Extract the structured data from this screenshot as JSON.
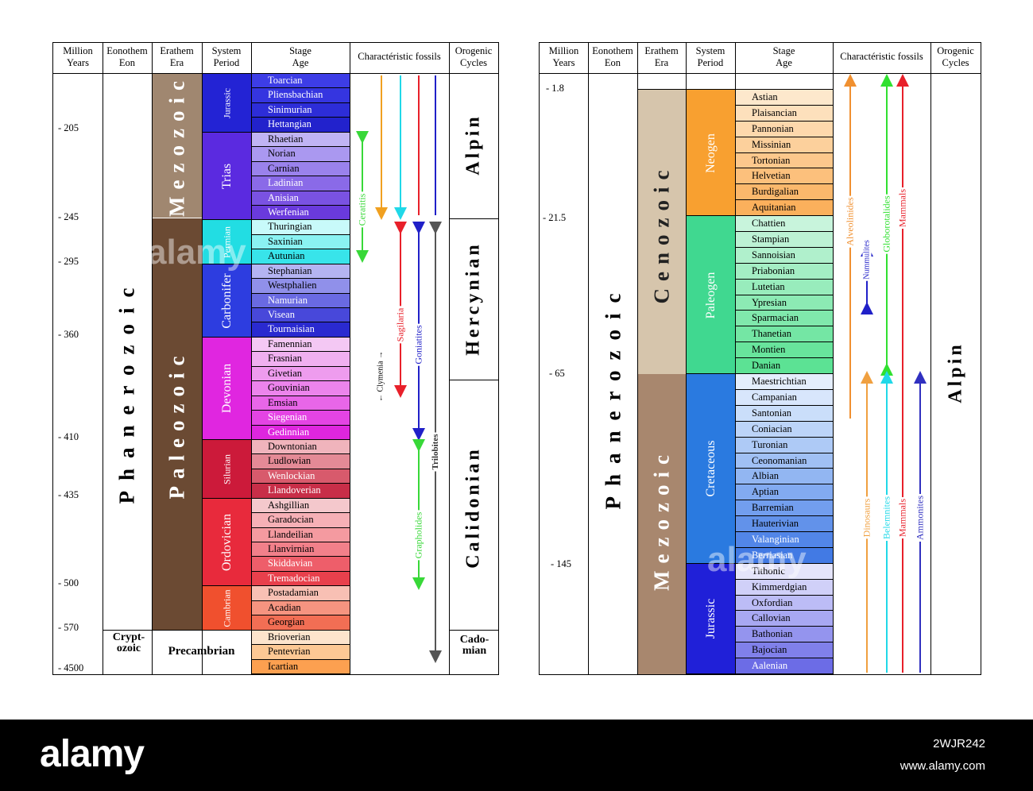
{
  "headers": {
    "years": [
      "Million",
      "Years"
    ],
    "eon": [
      "Eonothem",
      "Eon"
    ],
    "era": [
      "Erathem",
      "Era"
    ],
    "period": [
      "System",
      "Period"
    ],
    "stage": [
      "Stage",
      "Age"
    ],
    "fossils": "Charactéristic fossils",
    "orogenic": [
      "Orogenic",
      "Cycles"
    ]
  },
  "left": {
    "ticks": [
      "- 205",
      "- 245",
      "- 295",
      "- 360",
      "- 410",
      "- 435",
      "- 500",
      "- 570",
      "- 4500"
    ],
    "eon": "Phanerozoic",
    "cryptozoic": [
      "Crypt-",
      "ozoic"
    ],
    "precambrian": "Precambrian",
    "eras": [
      {
        "name": "Mezozoic",
        "color": "#a08770"
      },
      {
        "name": "Paleozoic",
        "color": "#6b4a33"
      }
    ],
    "periods": [
      {
        "name": "Jurassic",
        "color": "#2323d4"
      },
      {
        "name": "Trias",
        "color": "#5b2ae0"
      },
      {
        "name": "Permian",
        "color": "#22dde3"
      },
      {
        "name": "Carbonifer",
        "color": "#2d3de0"
      },
      {
        "name": "Devonian",
        "color": "#e026e0"
      },
      {
        "name": "Silurian",
        "color": "#cc1a3a"
      },
      {
        "name": "Ordovician",
        "color": "#e82a3c"
      },
      {
        "name": "Cambrian",
        "color": "#f0502e"
      }
    ],
    "stages": [
      {
        "name": "Toarcian",
        "color": "#3d3de6"
      },
      {
        "name": "Pliensbachian",
        "color": "#3535e0"
      },
      {
        "name": "Sinimurian",
        "color": "#2d2dd8"
      },
      {
        "name": "Hettangian",
        "color": "#2222cc"
      },
      {
        "name": "Rhaetian",
        "color": "#c0b4f4"
      },
      {
        "name": "Norian",
        "color": "#aa98f0"
      },
      {
        "name": "Carnian",
        "color": "#9a82ec"
      },
      {
        "name": "Ladinian",
        "color": "#8a6ae8"
      },
      {
        "name": "Anisian",
        "color": "#7a52e2"
      },
      {
        "name": "Werfenian",
        "color": "#6a3adc"
      },
      {
        "name": "Thuringian",
        "color": "#c8fafa"
      },
      {
        "name": "Saxinian",
        "color": "#8af2f2"
      },
      {
        "name": "Autunian",
        "color": "#38e4ea"
      },
      {
        "name": "Stephanian",
        "color": "#b4b4f2"
      },
      {
        "name": "Westphalien",
        "color": "#9090ea"
      },
      {
        "name": "Namurian",
        "color": "#6a6ae2"
      },
      {
        "name": "Visean",
        "color": "#4848da"
      },
      {
        "name": "Tournaisian",
        "color": "#2a2ad0"
      },
      {
        "name": "Famennian",
        "color": "#f4c8f4"
      },
      {
        "name": "Frasnian",
        "color": "#f0b0f0"
      },
      {
        "name": "Givetian",
        "color": "#ee9cee"
      },
      {
        "name": "Gouvinian",
        "color": "#ec84ec"
      },
      {
        "name": "Emsian",
        "color": "#e866e8"
      },
      {
        "name": "Siegenian",
        "color": "#e444e4"
      },
      {
        "name": "Gedinnian",
        "color": "#de26de"
      },
      {
        "name": "Downtonian",
        "color": "#f0b4bc"
      },
      {
        "name": "Ludlowian",
        "color": "#e48a96"
      },
      {
        "name": "Wenlockian",
        "color": "#d85a6c"
      },
      {
        "name": "Llandoverian",
        "color": "#c82e48"
      },
      {
        "name": "Ashgillian",
        "color": "#f4c8cc"
      },
      {
        "name": "Garadocian",
        "color": "#f6b0b6"
      },
      {
        "name": "Llandeilian",
        "color": "#f49aa0"
      },
      {
        "name": "Llanvirnian",
        "color": "#f2808a"
      },
      {
        "name": "Skiddavian",
        "color": "#ee5e6a"
      },
      {
        "name": "Tremadocian",
        "color": "#e8404c"
      },
      {
        "name": "Postadamian",
        "color": "#f8c0b4"
      },
      {
        "name": "Acadian",
        "color": "#f69480"
      },
      {
        "name": "Georgian",
        "color": "#f26e54"
      },
      {
        "name": "Brioverian",
        "color": "#fde4cc"
      },
      {
        "name": "Pentevrian",
        "color": "#fdc894"
      },
      {
        "name": "Icartian",
        "color": "#fca050"
      }
    ],
    "fossils": [
      {
        "name": "Ceratitis",
        "color": "#38d838"
      },
      {
        "name": "Clymenia",
        "color": "#000000"
      },
      {
        "name": "Sagilaria",
        "color": "#e8202a"
      },
      {
        "name": "Goniatites",
        "color": "#2020c8"
      },
      {
        "name": "Grapholides",
        "color": "#38d838"
      },
      {
        "name": "Trilobites",
        "color": "#555555"
      },
      {
        "name": "",
        "color": "#f0a020"
      },
      {
        "name": "",
        "color": "#20d8e8"
      },
      {
        "name": "",
        "color": "#e8202a"
      },
      {
        "name": "",
        "color": "#2020c8"
      }
    ],
    "orogenic": [
      "Alpin",
      "Hercynian",
      "Calidonian"
    ],
    "cadomian": [
      "Cado-",
      "mian"
    ]
  },
  "right": {
    "ticks": [
      "- 1.8",
      "- 21.5",
      "- 65",
      "- 145"
    ],
    "eon": "Phanerozoic",
    "eras": [
      {
        "name": "Cenozoic",
        "color": "#d6c5ac"
      },
      {
        "name": "Mezozoic",
        "color": "#a8876e"
      }
    ],
    "periods": [
      {
        "name": "Neogen",
        "color": "#f8a030"
      },
      {
        "name": "Paleogen",
        "color": "#40d890"
      },
      {
        "name": "Cretaceous",
        "color": "#2a7ae0"
      },
      {
        "name": "Jurassic",
        "color": "#2020d8"
      }
    ],
    "stages": [
      {
        "name": "Astian",
        "color": "#fde8cc"
      },
      {
        "name": "Plaisancian",
        "color": "#fde0bc"
      },
      {
        "name": "Pannonian",
        "color": "#fdd8ac"
      },
      {
        "name": "Missinian",
        "color": "#fcd09c"
      },
      {
        "name": "Tortonian",
        "color": "#fcc88c"
      },
      {
        "name": "Helvetian",
        "color": "#fcc07c"
      },
      {
        "name": "Burdigalian",
        "color": "#fbb86c"
      },
      {
        "name": "Aquitanian",
        "color": "#fbb05c"
      },
      {
        "name": "Chattien",
        "color": "#c8f4dc"
      },
      {
        "name": "Stampian",
        "color": "#bcf2d4"
      },
      {
        "name": "Sannoisian",
        "color": "#b0f0cc"
      },
      {
        "name": "Priabonian",
        "color": "#a4eec4"
      },
      {
        "name": "Lutetian",
        "color": "#98ecbc"
      },
      {
        "name": "Ypresian",
        "color": "#8ceab4"
      },
      {
        "name": "Sparmacian",
        "color": "#80e8ac"
      },
      {
        "name": "Thanetian",
        "color": "#74e6a4"
      },
      {
        "name": "Montien",
        "color": "#68e49c"
      },
      {
        "name": "Danian",
        "color": "#5ce294"
      },
      {
        "name": "Maestrichtian",
        "color": "#e4eefc"
      },
      {
        "name": "Campanian",
        "color": "#d8e6fc"
      },
      {
        "name": "Santonian",
        "color": "#cadefa"
      },
      {
        "name": "Coniacian",
        "color": "#bcd4f8"
      },
      {
        "name": "Turonian",
        "color": "#aecaf6"
      },
      {
        "name": "Ceonomanian",
        "color": "#a0c0f4"
      },
      {
        "name": "Albian",
        "color": "#92b6f2"
      },
      {
        "name": "Aptian",
        "color": "#82aaf0"
      },
      {
        "name": "Barremian",
        "color": "#729eee"
      },
      {
        "name": "Hauterivian",
        "color": "#6292ea"
      },
      {
        "name": "Valanginian",
        "color": "#5286e8"
      },
      {
        "name": "Berriasian",
        "color": "#427ae4"
      },
      {
        "name": "Tithonic",
        "color": "#e4e4fa"
      },
      {
        "name": "Kimmerdgian",
        "color": "#d0d0f8"
      },
      {
        "name": "Oxfordian",
        "color": "#bcbcf6"
      },
      {
        "name": "Callovian",
        "color": "#a8a8f2"
      },
      {
        "name": "Bathonian",
        "color": "#9494ee"
      },
      {
        "name": "Bajocian",
        "color": "#8080ea"
      },
      {
        "name": "Aalenian",
        "color": "#6c6ce6"
      }
    ],
    "fossils": [
      {
        "name": "Alveolinides",
        "color": "#f09030"
      },
      {
        "name": "Nummulites",
        "color": "#2020c8"
      },
      {
        "name": "Globorotalides",
        "color": "#30e030"
      },
      {
        "name": "Mammals",
        "color": "#e8202a"
      },
      {
        "name": "Dinosaurs",
        "color": "#f0a040"
      },
      {
        "name": "Belemnites",
        "color": "#20d8e8"
      },
      {
        "name": "Mammals",
        "color": "#e8202a"
      },
      {
        "name": "Ammonites",
        "color": "#3030c0"
      }
    ],
    "orogenic": "Alpin"
  },
  "footer": {
    "logo": "alamy",
    "image_id": "2WJR242",
    "url": "www.alamy.com",
    "watermark": "alamy"
  }
}
